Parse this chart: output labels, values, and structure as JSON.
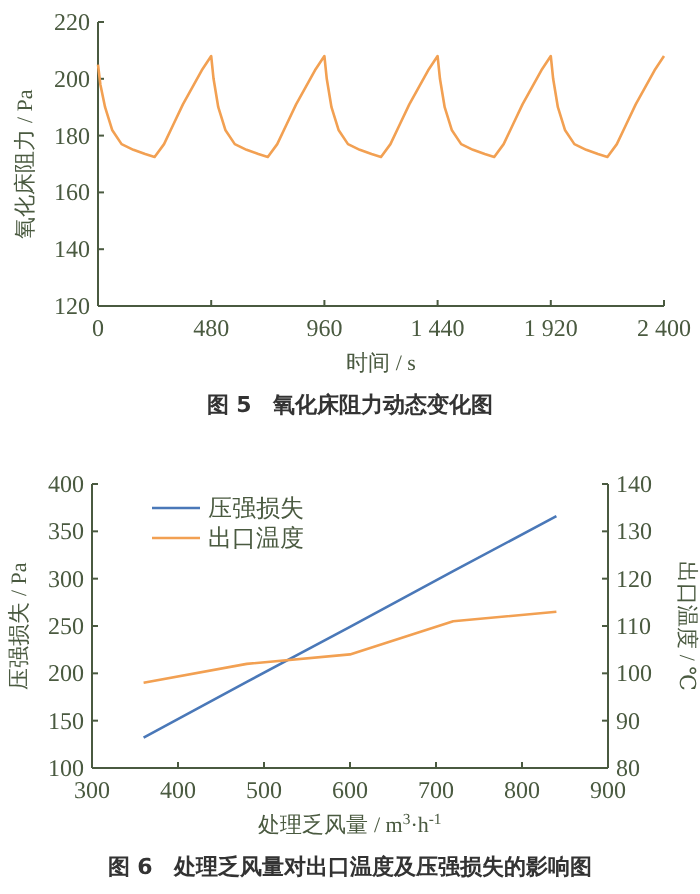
{
  "chart_data": [
    {
      "type": "line",
      "title": "图 5　氧化床阻力动态变化图",
      "xlabel": "时间 / s",
      "ylabel": "氧化床阻力 / Pa",
      "xlim": [
        0,
        2400
      ],
      "ylim": [
        120,
        220
      ],
      "xticks": [
        0,
        480,
        960,
        {
          "value": 1440,
          "label": "1 440"
        },
        {
          "value": 1920,
          "label": "1 920"
        },
        {
          "value": 2400,
          "label": "2 400"
        }
      ],
      "yticks": [
        120,
        140,
        160,
        180,
        200,
        220
      ],
      "grid": false,
      "legend": false,
      "series": [
        {
          "color": "#f2a052",
          "x": [
            0,
            10,
            30,
            60,
            100,
            150,
            200,
            240,
            280,
            320,
            360,
            400,
            440,
            480,
            490,
            510,
            540,
            580,
            630,
            680,
            720,
            760,
            800,
            840,
            880,
            920,
            960,
            970,
            990,
            1020,
            1060,
            1110,
            1160,
            1200,
            1240,
            1280,
            1320,
            1360,
            1400,
            1440,
            1450,
            1470,
            1500,
            1540,
            1590,
            1640,
            1680,
            1720,
            1760,
            1800,
            1840,
            1880,
            1920,
            1930,
            1950,
            1980,
            2020,
            2070,
            2120,
            2160,
            2200,
            2240,
            2280,
            2320,
            2360,
            2400
          ],
          "values": [
            205,
            198,
            190,
            182,
            177,
            175,
            173.5,
            172.5,
            177,
            184,
            191,
            197,
            203,
            208,
            200,
            190,
            182,
            177,
            175,
            173.5,
            172.5,
            177,
            184,
            191,
            197,
            203,
            208,
            200,
            190,
            182,
            177,
            175,
            173.5,
            172.5,
            177,
            184,
            191,
            197,
            203,
            208,
            200,
            190,
            182,
            177,
            175,
            173.5,
            172.5,
            177,
            184,
            191,
            197,
            203,
            208,
            200,
            190,
            182,
            177,
            175,
            173.5,
            172.5,
            177,
            184,
            191,
            197,
            203,
            208
          ]
        }
      ]
    },
    {
      "type": "line",
      "title": "图 6　处理乏风量对出口温度及压强损失的影响图",
      "xlabel": "处理乏风量 / m$^{3}$·h$^{-1}$",
      "ylabel": "压强损失 / Pa",
      "y2label": "出口温度 / ℃",
      "xlim": [
        300,
        900
      ],
      "ylim": [
        100,
        400
      ],
      "y2lim": [
        80,
        140
      ],
      "xticks": [
        300,
        400,
        500,
        600,
        700,
        800,
        900
      ],
      "yticks": [
        100,
        150,
        200,
        250,
        300,
        350,
        400
      ],
      "y2ticks": [
        80,
        90,
        100,
        110,
        120,
        130,
        140
      ],
      "grid": false,
      "legend": "top left",
      "series": [
        {
          "name": "压强损失",
          "color": "#4a78b8",
          "x": [
            360,
            480,
            600,
            720,
            840
          ],
          "values": [
            132,
            191,
            249,
            308,
            366
          ]
        },
        {
          "name": "出口温度",
          "color": "#f2a052",
          "axis": "y2",
          "x": [
            360,
            480,
            600,
            720,
            840
          ],
          "values": [
            98,
            102,
            104,
            111,
            113
          ]
        }
      ]
    }
  ]
}
